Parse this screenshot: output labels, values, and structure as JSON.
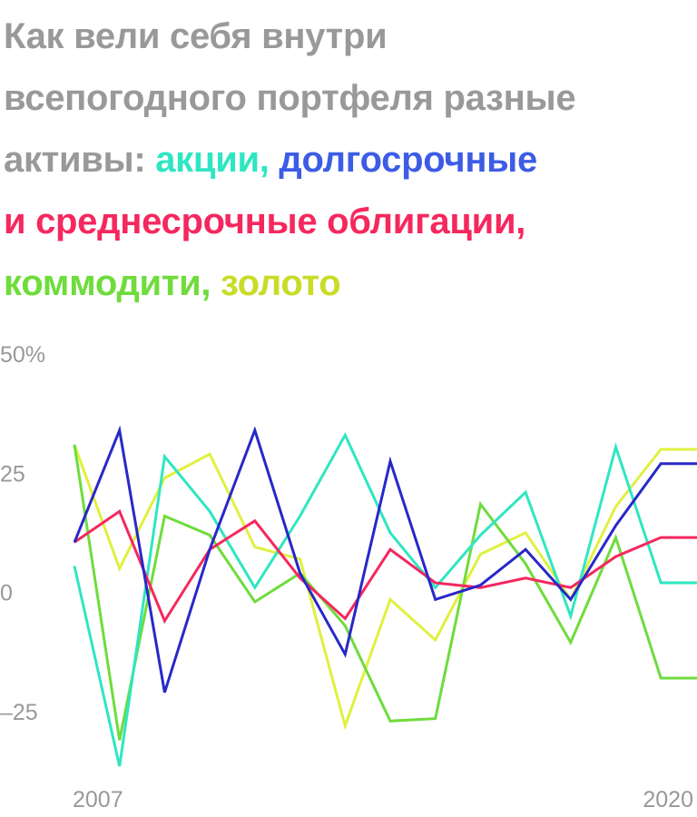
{
  "title": {
    "lines": [
      [
        {
          "text": "Как вели себя внутри",
          "role": "plain"
        }
      ],
      [
        {
          "text": "всепогодного портфеля разные",
          "role": "plain"
        }
      ],
      [
        {
          "text": "активы: ",
          "role": "plain"
        },
        {
          "text": "акции, ",
          "role": "stocks"
        },
        {
          "text": "долгосрочные",
          "role": "long"
        }
      ],
      [
        {
          "text": "и среднесрочные облигации,",
          "role": "mid"
        }
      ],
      [
        {
          "text": "коммодити, ",
          "role": "commodities"
        },
        {
          "text": "золото",
          "role": "gold"
        }
      ]
    ]
  },
  "colors": {
    "plain": "#999999",
    "stocks": "#2fe6c2",
    "long": "#3d5ce6",
    "mid": "#f5285e",
    "commodities": "#6fdc3c",
    "gold": "#c8dc28",
    "axis_text": "#999999"
  },
  "chart_data": {
    "type": "line",
    "x": [
      2007,
      2008,
      2009,
      2010,
      2011,
      2012,
      2013,
      2014,
      2015,
      2016,
      2017,
      2018,
      2019,
      2020,
      2021
    ],
    "xlim": [
      2007,
      2020.8
    ],
    "ylim": [
      -34,
      50
    ],
    "y_ticks": [
      {
        "value": 50,
        "label": "50%"
      },
      {
        "value": 25,
        "label": "25"
      },
      {
        "value": 0,
        "label": "0"
      },
      {
        "value": -25,
        "label": "–25"
      }
    ],
    "x_ticks": [
      {
        "value": 2007,
        "label": "2007"
      },
      {
        "value": 2020,
        "label": "2020"
      }
    ],
    "grid": false,
    "legend": "none",
    "series": [
      {
        "key": "gold",
        "color": "#e0f040",
        "values": [
          31,
          5,
          24,
          29,
          9.5,
          7,
          -28,
          -1.5,
          -10,
          8,
          12.5,
          -1.5,
          18,
          30,
          30
        ]
      },
      {
        "key": "commodities",
        "color": "#6fdc3c",
        "values": [
          31,
          -31,
          16,
          12,
          -2,
          4,
          -7,
          -27,
          -26.5,
          18.5,
          6,
          -10.5,
          11.5,
          -18,
          -18
        ]
      },
      {
        "key": "stocks",
        "color": "#2fe6c2",
        "values": [
          5.5,
          -36.5,
          28.5,
          17,
          1,
          16,
          33,
          12.5,
          1,
          12,
          21,
          -5,
          30.5,
          2,
          2
        ]
      },
      {
        "key": "mid",
        "color": "#f5285e",
        "values": [
          10.5,
          17,
          -6,
          9,
          15,
          3,
          -5.5,
          9,
          2,
          1,
          3,
          1,
          7.5,
          11.5,
          11.5
        ]
      },
      {
        "key": "long",
        "color": "#2828c8",
        "values": [
          10.5,
          34,
          -21,
          9,
          34,
          4,
          -13,
          27.5,
          -1.5,
          1.5,
          9,
          -1.5,
          14,
          27,
          27
        ]
      }
    ]
  }
}
